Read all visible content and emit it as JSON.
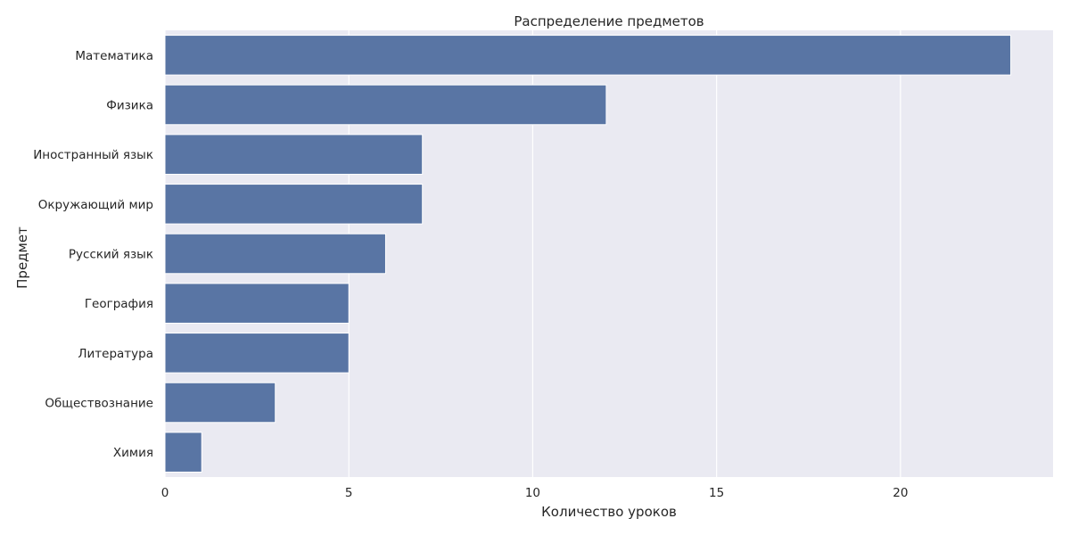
{
  "chart_data": {
    "type": "bar",
    "orientation": "horizontal",
    "title": "Распределение предметов",
    "xlabel": "Количество уроков",
    "ylabel": "Предмет",
    "categories": [
      "Математика",
      "Физика",
      "Иностранный язык",
      "Окружающий мир",
      "Русский язык",
      "География",
      "Литература",
      "Обществознание",
      "Химия"
    ],
    "values": [
      23,
      12,
      7,
      7,
      6,
      5,
      5,
      3,
      1
    ],
    "xlim": [
      0,
      24.15
    ],
    "xticks": [
      0,
      5,
      10,
      15,
      20
    ],
    "grid": true,
    "colors": {
      "bar": "#5975a4",
      "plot_background": "#eaeaf2",
      "grid": "#ffffff",
      "text": "#262626"
    }
  }
}
